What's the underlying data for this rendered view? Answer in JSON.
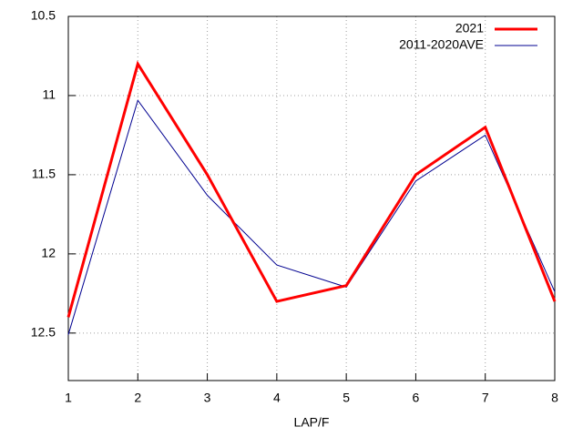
{
  "chart_data": {
    "type": "line",
    "xlabel": "LAP/F",
    "x": [
      1,
      2,
      3,
      4,
      5,
      6,
      7,
      8
    ],
    "series": [
      {
        "name": "2021",
        "color": "#ff0000",
        "values": [
          12.4,
          10.8,
          11.5,
          12.3,
          12.2,
          11.5,
          11.2,
          12.3
        ]
      },
      {
        "name": "2011-2020AVE",
        "color": "#000090",
        "values": [
          12.51,
          11.03,
          11.63,
          12.07,
          12.21,
          11.54,
          11.25,
          12.24
        ]
      }
    ],
    "xlim": [
      1,
      8
    ],
    "xticks": [
      1,
      2,
      3,
      4,
      5,
      6,
      7,
      8
    ],
    "ylim": [
      10.5,
      12.8
    ],
    "yticks": [
      10.5,
      11,
      11.5,
      12,
      12.5
    ],
    "y_inverted": true,
    "grid": true,
    "legend": "top-right"
  }
}
